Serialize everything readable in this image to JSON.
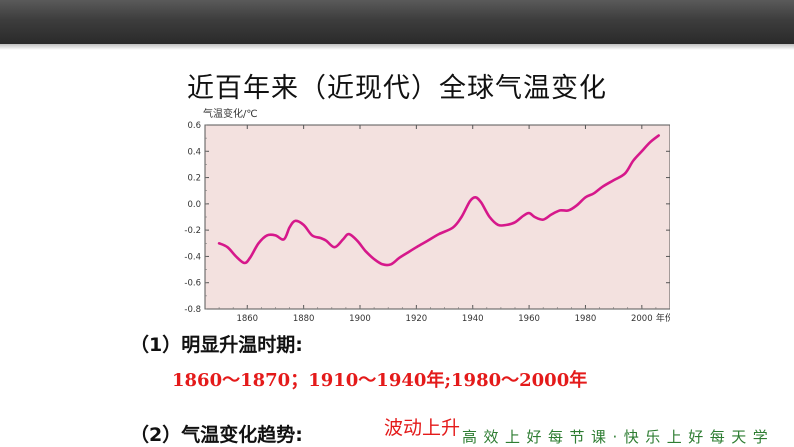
{
  "slide": {
    "title": "近百年来（近现代）全球气温变化",
    "q1": "（1）明显升温时期:",
    "a1": "1860～1870；1910～1940年;1980～2000年",
    "q2": "（2）气温变化趋势:",
    "a2": "波动上升",
    "slogan": "高效上好每节课·快乐上好每天学"
  },
  "colors": {
    "top_bar": "#3d3d3d",
    "plot_background": "#f3e1df",
    "line": "#d6188b",
    "answer_text": "#e41a1a",
    "slogan_text": "#2e7d32"
  },
  "chart_data": {
    "type": "line",
    "ylabel": "气温变化/℃",
    "xlabel": "年份",
    "xlim": [
      1845,
      2010
    ],
    "ylim": [
      -0.8,
      0.6
    ],
    "x_ticks": [
      1860,
      1880,
      1900,
      1920,
      1940,
      1960,
      1980,
      2000
    ],
    "y_ticks": [
      "0.6",
      "0.4",
      "0.2",
      "0.0",
      "-0.2",
      "-0.4",
      "-0.6",
      "-0.8"
    ],
    "grid": false,
    "series": [
      {
        "points": [
          [
            1850,
            -0.3
          ],
          [
            1853,
            -0.33
          ],
          [
            1856,
            -0.4
          ],
          [
            1859,
            -0.45
          ],
          [
            1861,
            -0.41
          ],
          [
            1864,
            -0.3
          ],
          [
            1867,
            -0.24
          ],
          [
            1870,
            -0.24
          ],
          [
            1873,
            -0.27
          ],
          [
            1875,
            -0.18
          ],
          [
            1877,
            -0.13
          ],
          [
            1880,
            -0.16
          ],
          [
            1883,
            -0.24
          ],
          [
            1886,
            -0.26
          ],
          [
            1888,
            -0.28
          ],
          [
            1891,
            -0.33
          ],
          [
            1894,
            -0.27
          ],
          [
            1896,
            -0.23
          ],
          [
            1899,
            -0.28
          ],
          [
            1902,
            -0.36
          ],
          [
            1905,
            -0.42
          ],
          [
            1908,
            -0.46
          ],
          [
            1911,
            -0.46
          ],
          [
            1914,
            -0.41
          ],
          [
            1917,
            -0.37
          ],
          [
            1920,
            -0.33
          ],
          [
            1924,
            -0.28
          ],
          [
            1928,
            -0.23
          ],
          [
            1933,
            -0.18
          ],
          [
            1936,
            -0.1
          ],
          [
            1939,
            0.02
          ],
          [
            1941,
            0.05
          ],
          [
            1943,
            0.01
          ],
          [
            1946,
            -0.1
          ],
          [
            1949,
            -0.16
          ],
          [
            1952,
            -0.16
          ],
          [
            1955,
            -0.14
          ],
          [
            1958,
            -0.09
          ],
          [
            1960,
            -0.07
          ],
          [
            1962,
            -0.1
          ],
          [
            1965,
            -0.12
          ],
          [
            1968,
            -0.08
          ],
          [
            1971,
            -0.05
          ],
          [
            1974,
            -0.05
          ],
          [
            1977,
            -0.01
          ],
          [
            1980,
            0.05
          ],
          [
            1983,
            0.08
          ],
          [
            1986,
            0.13
          ],
          [
            1990,
            0.18
          ],
          [
            1994,
            0.23
          ],
          [
            1997,
            0.33
          ],
          [
            2000,
            0.4
          ],
          [
            2003,
            0.47
          ],
          [
            2006,
            0.52
          ]
        ]
      }
    ]
  }
}
